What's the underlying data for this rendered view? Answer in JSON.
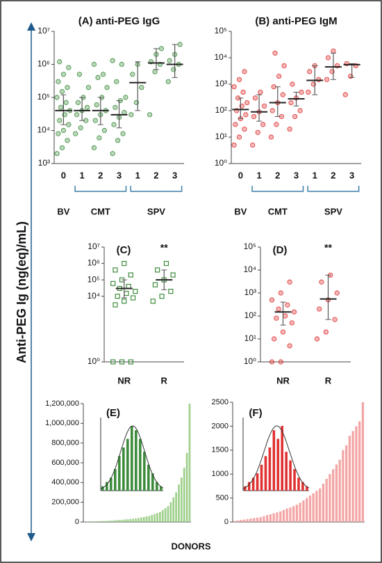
{
  "y_label": "Anti-PEG Ig (ng(eq)/mL)",
  "x_label": "DONORS",
  "chart_data": [
    {
      "type": "dot",
      "title": "(A) anti-PEG IgG",
      "log_y": true,
      "color": "#3c8c3c",
      "marker": "circle",
      "ylim": [
        1000,
        10000000
      ],
      "yticks": [
        {
          "value": 1000,
          "label": "10³"
        },
        {
          "value": 10000,
          "label": "10⁴"
        },
        {
          "value": 100000,
          "label": "10⁵"
        },
        {
          "value": 1000000,
          "label": "10⁶"
        },
        {
          "value": 10000000,
          "label": "10⁷"
        }
      ],
      "groups": [
        {
          "name": "BV",
          "items": [
            {
              "category": "0",
              "values": [
                2000,
                3000,
                5000,
                8000,
                10000,
                15000,
                20000,
                30000,
                40000,
                50000,
                70000,
                100000,
                150000,
                200000,
                300000,
                500000,
                800000,
                1200000
              ],
              "median": 40000,
              "range": [
                15000,
                120000
              ]
            }
          ]
        },
        {
          "name": "CMT",
          "items": [
            {
              "category": "1",
              "values": [
                8000,
                12000,
                20000,
                30000,
                40000,
                50000,
                70000,
                100000,
                200000,
                500000
              ],
              "median": 40000,
              "range": [
                20000,
                100000
              ]
            },
            {
              "category": "2",
              "values": [
                3000,
                6000,
                10000,
                20000,
                30000,
                40000,
                60000,
                100000,
                200000,
                400000,
                500000,
                1000000
              ],
              "median": 40000,
              "range": [
                15000,
                100000
              ]
            },
            {
              "category": "3",
              "values": [
                2000,
                5000,
                8000,
                15000,
                25000,
                35000,
                50000,
                80000,
                100000,
                300000,
                1000000,
                1300000
              ],
              "median": 30000,
              "range": [
                12000,
                80000
              ]
            }
          ]
        },
        {
          "name": "SPV",
          "items": [
            {
              "category": "1",
              "values": [
                30000,
                70000,
                200000,
                500000,
                1000000
              ],
              "median": 280000,
              "range": [
                40000,
                1200000
              ]
            },
            {
              "category": "2",
              "values": [
                30000,
                600000,
                1000000,
                1200000,
                2000000,
                3000000
              ],
              "median": 1100000,
              "range": [
                700000,
                3000000
              ]
            },
            {
              "category": "3",
              "values": [
                300000,
                700000,
                1000000,
                1300000,
                2000000,
                4000000
              ],
              "median": 1000000,
              "range": [
                400000,
                4000000
              ]
            }
          ]
        }
      ]
    },
    {
      "type": "dot",
      "title": "(B) anti-PEG IgM",
      "log_y": true,
      "color": "#e03030",
      "marker": "circle",
      "ylim": [
        1,
        100000
      ],
      "yticks": [
        {
          "value": 1,
          "label": "10⁰"
        },
        {
          "value": 10,
          "label": "10¹"
        },
        {
          "value": 100,
          "label": "10²"
        },
        {
          "value": 1000,
          "label": "10³"
        },
        {
          "value": 10000,
          "label": "10⁴"
        },
        {
          "value": 100000,
          "label": "10⁵"
        }
      ],
      "groups": [
        {
          "name": "BV",
          "items": [
            {
              "category": "0",
              "values": [
                5,
                10,
                20,
                30,
                50,
                70,
                100,
                150,
                200,
                300,
                500,
                800,
                1500,
                3000
              ],
              "median": 110,
              "range": [
                50,
                300
              ]
            }
          ]
        },
        {
          "name": "CMT",
          "items": [
            {
              "category": "1",
              "values": [
                5,
                15,
                30,
                60,
                90,
                150,
                300,
                500
              ],
              "median": 90,
              "range": [
                40,
                400
              ]
            },
            {
              "category": "2",
              "values": [
                10,
                30,
                60,
                100,
                200,
                400,
                800,
                2000,
                5000,
                15000
              ],
              "median": 200,
              "range": [
                60,
                800
              ]
            },
            {
              "category": "3",
              "values": [
                20,
                60,
                100,
                200,
                300,
                500,
                1000
              ],
              "median": 280,
              "range": [
                150,
                500
              ]
            }
          ]
        },
        {
          "name": "SPV",
          "items": [
            {
              "category": "1",
              "values": [
                500,
                1000,
                1500,
                3000,
                5000
              ],
              "median": 1400,
              "range": [
                400,
                5000
              ]
            },
            {
              "category": "2",
              "values": [
                1500,
                3000,
                5000,
                10000,
                18000
              ],
              "median": 4500,
              "range": [
                1500,
                15000
              ]
            },
            {
              "category": "3",
              "values": [
                400,
                2000,
                5000,
                6000
              ],
              "median": 5500,
              "range": [
                1800,
                6000
              ]
            }
          ]
        }
      ]
    },
    {
      "type": "dot",
      "title": "(C)",
      "log_y": true,
      "color": "#3c8c3c",
      "marker": "square",
      "ylim": [
        1,
        10000000
      ],
      "yticks": [
        {
          "value": 1,
          "label": "10⁰"
        },
        {
          "value": 10000,
          "label": "10⁴"
        },
        {
          "value": 100000,
          "label": "10⁵"
        },
        {
          "value": 1000000,
          "label": "10⁶"
        },
        {
          "value": 10000000,
          "label": "10⁷"
        }
      ],
      "items": [
        {
          "category": "NR",
          "values": [
            1,
            1,
            1,
            3000,
            5000,
            8000,
            10000,
            15000,
            20000,
            30000,
            40000,
            60000,
            100000,
            200000,
            400000,
            1000000
          ],
          "median": 30000,
          "range": [
            8000,
            100000
          ]
        },
        {
          "category": "R",
          "values": [
            5000,
            10000,
            20000,
            50000,
            100000,
            200000,
            400000,
            1000000
          ],
          "median": 100000,
          "range": [
            25000,
            400000
          ],
          "annotation": "**"
        }
      ]
    },
    {
      "type": "dot",
      "title": "(D)",
      "log_y": true,
      "color": "#e03030",
      "marker": "circle",
      "ylim": [
        1,
        100000
      ],
      "yticks": [
        {
          "value": 1,
          "label": "10⁰"
        },
        {
          "value": 10,
          "label": "10¹"
        },
        {
          "value": 100,
          "label": "10²"
        },
        {
          "value": 1000,
          "label": "10³"
        },
        {
          "value": 10000,
          "label": "10⁴"
        },
        {
          "value": 100000,
          "label": "10⁵"
        }
      ],
      "items": [
        {
          "category": "NR",
          "values": [
            1,
            1,
            5,
            10,
            20,
            50,
            80,
            100,
            150,
            200,
            300,
            500,
            1000,
            3000
          ],
          "median": 150,
          "range": [
            40,
            400
          ]
        },
        {
          "category": "R",
          "values": [
            10,
            20,
            70,
            200,
            500,
            1000,
            3000,
            6000
          ],
          "median": 550,
          "range": [
            70,
            6000
          ],
          "annotation": "**"
        }
      ]
    },
    {
      "type": "bar",
      "title": "(E)",
      "color": "#9fd08c",
      "ylim": [
        0,
        1200000
      ],
      "yticks": [
        0,
        {
          "value": 200000,
          "label": "200,000"
        },
        {
          "value": 400000,
          "label": "400,000"
        },
        {
          "value": 600000,
          "label": "600,000"
        },
        {
          "value": 800000,
          "label": "800,000"
        },
        {
          "value": 1000000,
          "label": "1,000,000"
        },
        {
          "value": 1200000,
          "label": "1,200,000"
        }
      ],
      "values": [
        2000,
        3000,
        4000,
        5000,
        6000,
        7000,
        8000,
        9000,
        10000,
        12000,
        14000,
        16000,
        18000,
        20000,
        22000,
        25000,
        28000,
        30000,
        33000,
        36000,
        40000,
        45000,
        50000,
        55000,
        60000,
        70000,
        80000,
        90000,
        100000,
        120000,
        140000,
        160000,
        200000,
        250000,
        300000,
        380000,
        450000,
        550000,
        700000,
        1200000
      ],
      "inset": {
        "type": "bar",
        "color": "#3c8c3c",
        "values": [
          1,
          2,
          3,
          5,
          8,
          10,
          12,
          15,
          14,
          12,
          9,
          6,
          4,
          2,
          1
        ]
      }
    },
    {
      "type": "bar",
      "title": "(F)",
      "color": "#f4a6a6",
      "ylim": [
        0,
        2500
      ],
      "yticks": [
        0,
        500,
        1000,
        1500,
        2000,
        2500
      ],
      "values": [
        20,
        30,
        40,
        50,
        60,
        70,
        80,
        90,
        100,
        120,
        140,
        160,
        180,
        200,
        220,
        250,
        280,
        300,
        330,
        360,
        400,
        450,
        500,
        550,
        600,
        650,
        700,
        800,
        900,
        1000,
        1100,
        1200,
        1300,
        1500,
        1600,
        1800,
        1900,
        2000,
        2100,
        2500
      ],
      "inset": {
        "type": "bar",
        "color": "#e03030",
        "values": [
          1,
          2,
          3,
          4,
          6,
          8,
          10,
          14,
          12,
          15,
          9,
          7,
          5,
          3,
          2,
          1
        ]
      }
    }
  ]
}
